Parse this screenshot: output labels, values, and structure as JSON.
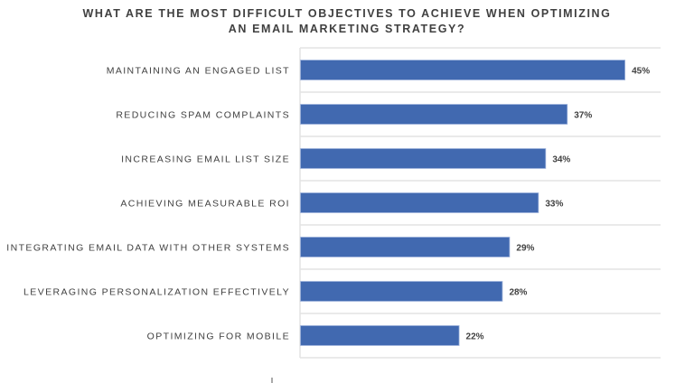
{
  "chart_data": {
    "type": "bar",
    "orientation": "horizontal",
    "title_lines": [
      "WHAT ARE THE MOST DIFFICULT OBJECTIVES TO ACHIEVE WHEN OPTIMIZING",
      "AN EMAIL MARKETING STRATEGY?"
    ],
    "categories": [
      "MAINTAINING AN ENGAGED LIST",
      "REDUCING SPAM COMPLAINTS",
      "INCREASING EMAIL LIST SIZE",
      "ACHIEVING MEASURABLE ROI",
      "INTEGRATING EMAIL DATA WITH OTHER SYSTEMS",
      "LEVERAGING PERSONALIZATION EFFECTIVELY",
      "OPTIMIZING FOR MOBILE"
    ],
    "values": [
      45,
      37,
      34,
      33,
      29,
      28,
      22
    ],
    "value_labels": [
      "45%",
      "37%",
      "34%",
      "33%",
      "29%",
      "28%",
      "22%"
    ],
    "xlim": [
      0,
      50
    ],
    "grid": "horizontal separators",
    "bar_color": "#4169B0"
  }
}
